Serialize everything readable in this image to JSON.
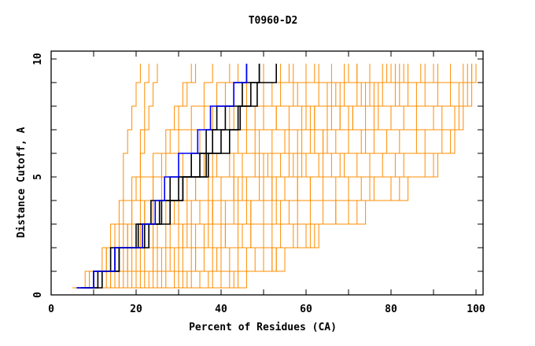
{
  "chart_data": {
    "type": "line",
    "title": "T0960-D2",
    "xlabel": "Percent of Residues (CA)",
    "ylabel": "Distance Cutoff, A",
    "xlim": [
      0,
      100
    ],
    "ylim": [
      0,
      10
    ],
    "x_ticks": [
      "0",
      "20",
      "40",
      "60",
      "80",
      "100"
    ],
    "y_ticks": [
      "0",
      "5",
      "10"
    ],
    "grid": false,
    "colors": {
      "models": "#ff8c00",
      "highlight": "#0000ff",
      "reference": "#000000",
      "axis": "#000000"
    },
    "y_levels": [
      0.3,
      1,
      2,
      3,
      4,
      5,
      6,
      7,
      8,
      9,
      9.8
    ],
    "series": [
      {
        "name": "highlight",
        "color": "#0000ff",
        "x": [
          6,
          10,
          15,
          21.5,
          24.5,
          26.7,
          30,
          34.5,
          37.5,
          43,
          46
        ]
      },
      {
        "name": "black-1",
        "color": "#000000",
        "x": [
          6,
          10,
          14,
          20,
          23.5,
          28,
          33,
          36.5,
          39,
          43,
          46
        ]
      },
      {
        "name": "black-2",
        "color": "#000000",
        "x": [
          7,
          11,
          16,
          22,
          25.5,
          30,
          35,
          38,
          41,
          45,
          49
        ]
      },
      {
        "name": "black-3",
        "color": "#000000",
        "x": [
          7,
          10,
          15,
          20.5,
          26,
          31,
          36.5,
          40,
          44.5,
          48.5,
          53
        ]
      },
      {
        "name": "black-4",
        "color": "#000000",
        "x": [
          8,
          12,
          16,
          23,
          28,
          31,
          37,
          42,
          44,
          47,
          49
        ]
      }
    ],
    "model_series": [
      [
        5,
        8,
        12,
        14,
        16,
        17,
        17,
        18,
        19,
        20,
        21
      ],
      [
        6,
        9,
        13,
        15,
        17,
        19,
        21,
        22,
        23,
        24,
        25
      ],
      [
        7,
        10,
        13,
        16,
        19,
        21,
        24,
        27,
        29,
        31,
        33
      ],
      [
        6,
        11,
        15,
        18,
        21,
        24,
        27,
        30,
        33,
        36,
        38
      ],
      [
        8,
        12,
        17,
        21,
        24,
        28,
        31,
        35,
        38,
        41,
        44
      ],
      [
        9,
        13,
        18,
        22,
        27,
        31,
        35,
        38,
        42,
        46,
        50
      ],
      [
        7,
        14,
        20,
        25,
        30,
        34,
        38,
        42,
        46,
        50,
        54
      ],
      [
        10,
        15,
        21,
        27,
        32,
        37,
        42,
        46,
        50,
        54,
        57
      ],
      [
        11,
        17,
        24,
        30,
        35,
        40,
        45,
        49,
        53,
        57,
        60
      ],
      [
        12,
        19,
        27,
        33,
        38,
        43,
        48,
        52,
        56,
        60,
        63
      ],
      [
        13,
        21,
        29,
        36,
        41,
        46,
        51,
        55,
        59,
        63,
        66
      ],
      [
        14,
        23,
        31,
        38,
        44,
        49,
        54,
        58,
        62,
        66,
        69
      ],
      [
        15,
        25,
        34,
        41,
        47,
        52,
        57,
        61,
        65,
        69,
        72
      ],
      [
        17,
        27,
        36,
        44,
        50,
        55,
        60,
        64,
        68,
        72,
        75
      ],
      [
        18,
        29,
        39,
        47,
        53,
        58,
        63,
        67,
        71,
        75,
        78
      ],
      [
        20,
        31,
        42,
        50,
        56,
        61,
        66,
        70,
        74,
        78,
        81
      ],
      [
        22,
        33,
        44,
        52,
        58,
        64,
        69,
        73,
        77,
        81,
        84
      ],
      [
        24,
        35,
        46,
        54,
        61,
        67,
        72,
        76,
        80,
        84,
        87
      ],
      [
        26,
        37,
        48,
        57,
        64,
        70,
        75,
        79,
        83,
        88,
        91
      ],
      [
        28,
        38,
        50,
        60,
        67,
        73,
        78,
        82,
        86,
        91,
        94
      ],
      [
        30,
        40,
        52,
        63,
        70,
        76,
        81,
        86,
        90,
        94,
        97
      ],
      [
        34,
        42,
        52,
        58,
        67,
        75,
        83,
        88,
        92,
        96,
        98
      ],
      [
        36,
        44,
        53,
        60,
        70,
        80,
        88,
        92,
        95,
        97,
        99
      ],
      [
        38,
        46,
        55,
        62,
        74,
        84,
        91,
        95,
        97,
        99,
        100
      ],
      [
        35,
        43,
        53,
        61,
        72,
        82,
        90,
        94,
        96,
        98,
        99
      ],
      [
        6,
        10,
        14,
        17,
        19,
        20,
        21,
        21,
        22,
        22,
        23
      ],
      [
        9,
        12,
        16,
        19,
        22,
        24,
        26,
        28,
        30,
        32,
        34
      ],
      [
        10,
        14,
        19,
        24,
        28,
        32,
        36,
        40,
        43,
        47,
        50
      ],
      [
        12,
        16,
        22,
        28,
        33,
        38,
        43,
        48,
        53,
        58,
        62
      ],
      [
        14,
        18,
        25,
        31,
        37,
        43,
        49,
        55,
        61,
        67,
        72
      ],
      [
        16,
        22,
        30,
        37,
        43,
        50,
        56,
        62,
        68,
        74,
        80
      ],
      [
        11,
        20,
        28,
        34,
        40,
        45,
        50,
        55,
        60,
        65,
        70
      ],
      [
        19,
        26,
        34,
        41,
        47,
        53,
        59,
        65,
        71,
        77,
        83
      ],
      [
        21,
        30,
        38,
        45,
        52,
        58,
        64,
        70,
        76,
        82,
        88
      ],
      [
        8,
        16,
        24,
        31,
        38,
        44,
        50,
        56,
        62,
        68,
        75
      ],
      [
        13,
        24,
        33,
        40,
        46,
        52,
        58,
        64,
        70,
        76,
        82
      ],
      [
        25,
        32,
        40,
        47,
        54,
        61,
        68,
        74,
        80,
        86,
        90
      ],
      [
        15,
        20,
        26,
        32,
        38,
        45,
        52,
        59,
        66,
        73,
        79
      ],
      [
        7,
        12,
        18,
        24,
        29,
        34,
        39,
        44,
        48,
        52,
        56
      ],
      [
        5,
        9,
        14,
        18,
        22,
        26,
        30,
        33,
        36,
        39,
        42
      ]
    ]
  }
}
